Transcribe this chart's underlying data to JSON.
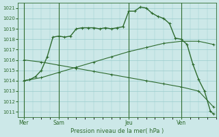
{
  "bg_color": "#cce8e8",
  "grid_color": "#99cccc",
  "line_color": "#2d6a2d",
  "xlabel": "Pression niveau de la mer( hPa )",
  "ylim": [
    1010.5,
    1021.5
  ],
  "yticks": [
    1011,
    1012,
    1013,
    1014,
    1015,
    1016,
    1017,
    1018,
    1019,
    1020,
    1021
  ],
  "day_labels": [
    "Mer",
    "Sam",
    "Jeu",
    "Ven"
  ],
  "day_positions": [
    0,
    24,
    72,
    108
  ],
  "vline_positions": [
    0,
    24,
    72,
    108
  ],
  "xlim": [
    -4,
    132
  ],
  "series1_x": [
    0,
    4,
    8,
    12,
    16,
    20,
    24,
    28,
    32,
    36,
    40,
    44,
    48,
    52,
    56,
    60,
    64,
    68,
    72,
    76,
    80,
    84,
    88,
    92,
    96,
    100,
    104,
    108,
    112,
    116,
    120,
    124,
    128,
    130
  ],
  "series1_y": [
    1014.0,
    1014.1,
    1014.4,
    1015.0,
    1016.3,
    1018.2,
    1018.3,
    1018.2,
    1018.3,
    1019.0,
    1019.1,
    1019.1,
    1019.1,
    1019.0,
    1019.1,
    1019.0,
    1019.1,
    1019.2,
    1020.7,
    1020.7,
    1021.1,
    1021.0,
    1020.5,
    1020.2,
    1020.0,
    1019.5,
    1018.1,
    1018.0,
    1017.5,
    1015.6,
    1014.1,
    1013.0,
    1011.1,
    1010.8
  ],
  "series2_x": [
    0,
    12,
    24,
    36,
    48,
    60,
    72,
    84,
    96,
    108,
    120,
    130
  ],
  "series2_y": [
    1014.0,
    1014.3,
    1014.8,
    1015.3,
    1015.8,
    1016.3,
    1016.8,
    1017.2,
    1017.6,
    1017.8,
    1017.8,
    1017.5
  ],
  "series3_x": [
    0,
    12,
    24,
    36,
    48,
    60,
    72,
    84,
    96,
    108,
    120,
    130
  ],
  "series3_y": [
    1016.0,
    1015.8,
    1015.5,
    1015.2,
    1014.9,
    1014.6,
    1014.3,
    1014.0,
    1013.7,
    1013.4,
    1013.0,
    1011.5
  ]
}
